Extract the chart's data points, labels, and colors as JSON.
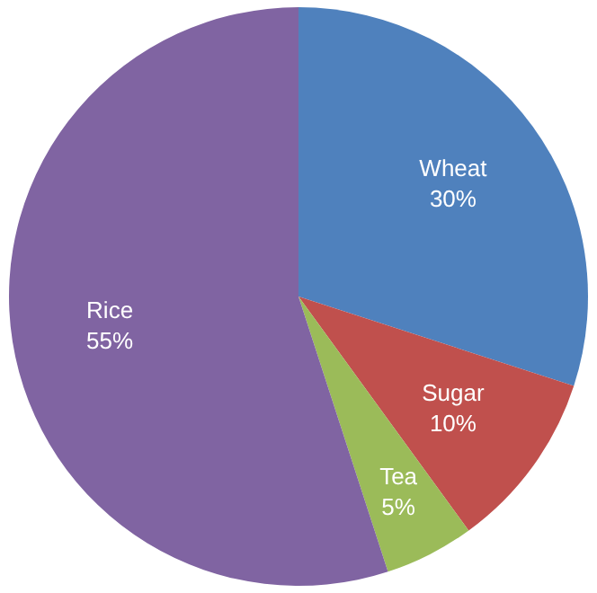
{
  "chart_data": {
    "type": "pie",
    "categories": [
      "Wheat",
      "Sugar",
      "Tea",
      "Rice"
    ],
    "values": [
      30,
      10,
      5,
      55
    ],
    "colors": [
      "#4f81bd",
      "#c0504d",
      "#9bbb59",
      "#8064a2"
    ],
    "value_labels": [
      "30%",
      "10%",
      "5%",
      "55%"
    ],
    "legend": false
  }
}
